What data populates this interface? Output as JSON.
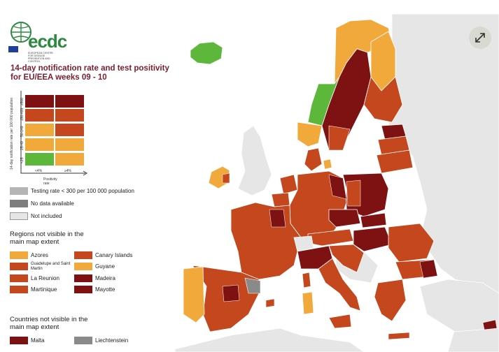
{
  "title": "14-day notification rate and test positivity for EU/EEA weeks 09 - 10",
  "logo": {
    "text": "ecdc",
    "subtitle": "EUROPEAN CENTRE FOR DISEASE PREVENTION AND CONTROL"
  },
  "matrix": {
    "y_axis_label": "14-day notification rate per 100 000 population",
    "x_axis_label": "Positivity rate",
    "x_ticks": [
      "<4%",
      "≥4%"
    ],
    "y_ticks": [
      "<25",
      "25-49",
      "50-149",
      "150-499",
      "≥500"
    ]
  },
  "status_legend": [
    {
      "label": "Testing rate < 300 per 100 000 population",
      "color": "#b5b5b5"
    },
    {
      "label": "No data available",
      "color": "#7d7d7d"
    },
    {
      "label": "Not included",
      "color": "#e6e6e6"
    }
  ],
  "regions_heading": "Regions not visible in the main map extent",
  "regions": [
    {
      "label": "Azores",
      "color": "#f2a93b"
    },
    {
      "label": "Canary Islands",
      "color": "#c4471d"
    },
    {
      "label": "Guadelupe and Saint Martin",
      "color": "#c4471d"
    },
    {
      "label": "Guyane",
      "color": "#f2a93b"
    },
    {
      "label": "La Reunion",
      "color": "#c4471d"
    },
    {
      "label": "Madeira",
      "color": "#7e1212"
    },
    {
      "label": "Martinique",
      "color": "#c4471d"
    },
    {
      "label": "Mayotte",
      "color": "#7e1212"
    }
  ],
  "countries_heading": "Countries not visible in the main map extent",
  "countries": [
    {
      "label": "Malta",
      "color": "#7e1212"
    },
    {
      "label": "Liechtenstein",
      "color": "#8a8a8a"
    }
  ],
  "colors": {
    "dark_red": "#7e1212",
    "red": "#c4471d",
    "orange": "#f2a93b",
    "green": "#5cb73a",
    "not_included": "#e6e6e6",
    "no_data": "#8a8a8a"
  },
  "controls": {
    "expand_icon": "expand-icon"
  }
}
